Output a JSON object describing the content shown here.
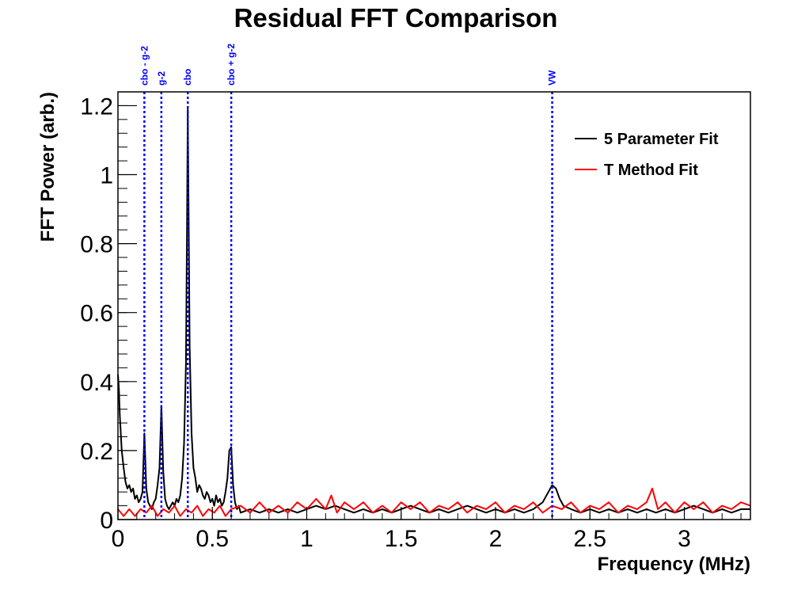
{
  "chart_data": {
    "type": "line",
    "title": "Residual FFT Comparison",
    "xlabel": "Frequency (MHz)",
    "ylabel": "FFT Power (arb.)",
    "xlim": [
      0,
      3.35
    ],
    "ylim": [
      0,
      1.24
    ],
    "x_ticks": [
      {
        "value": 0,
        "label": "0"
      },
      {
        "value": 0.5,
        "label": "0.5"
      },
      {
        "value": 1,
        "label": "1"
      },
      {
        "value": 1.5,
        "label": "1.5"
      },
      {
        "value": 2,
        "label": "2"
      },
      {
        "value": 2.5,
        "label": "2.5"
      },
      {
        "value": 3,
        "label": "3"
      }
    ],
    "y_ticks": [
      {
        "value": 0,
        "label": "0"
      },
      {
        "value": 0.2,
        "label": "0.2"
      },
      {
        "value": 0.4,
        "label": "0.4"
      },
      {
        "value": 0.6,
        "label": "0.6"
      },
      {
        "value": 0.8,
        "label": "0.8"
      },
      {
        "value": 1,
        "label": "1"
      },
      {
        "value": 1.2,
        "label": "1.2"
      }
    ],
    "legend_position": "top-right",
    "grid": false,
    "markers": [
      {
        "label": "cbo - g-2",
        "x": 0.14
      },
      {
        "label": "g-2",
        "x": 0.23
      },
      {
        "label": "cbo",
        "x": 0.37
      },
      {
        "label": "cbo + g-2",
        "x": 0.6
      },
      {
        "label": "VW",
        "x": 2.3
      }
    ],
    "series": [
      {
        "name": "5 Parameter Fit",
        "color": "#000000",
        "points": [
          [
            0,
            0.42
          ],
          [
            0.005,
            0.38
          ],
          [
            0.01,
            0.3
          ],
          [
            0.02,
            0.2
          ],
          [
            0.03,
            0.15
          ],
          [
            0.04,
            0.11
          ],
          [
            0.05,
            0.09
          ],
          [
            0.06,
            0.1
          ],
          [
            0.07,
            0.08
          ],
          [
            0.08,
            0.09
          ],
          [
            0.09,
            0.06
          ],
          [
            0.1,
            0.07
          ],
          [
            0.11,
            0.05
          ],
          [
            0.12,
            0.06
          ],
          [
            0.13,
            0.08
          ],
          [
            0.14,
            0.25
          ],
          [
            0.15,
            0.09
          ],
          [
            0.16,
            0.05
          ],
          [
            0.17,
            0.04
          ],
          [
            0.18,
            0.03
          ],
          [
            0.19,
            0.05
          ],
          [
            0.2,
            0.06
          ],
          [
            0.21,
            0.1
          ],
          [
            0.22,
            0.15
          ],
          [
            0.23,
            0.33
          ],
          [
            0.24,
            0.14
          ],
          [
            0.25,
            0.06
          ],
          [
            0.26,
            0.04
          ],
          [
            0.27,
            0.03
          ],
          [
            0.28,
            0.04
          ],
          [
            0.29,
            0.05
          ],
          [
            0.3,
            0.04
          ],
          [
            0.31,
            0.06
          ],
          [
            0.32,
            0.05
          ],
          [
            0.33,
            0.07
          ],
          [
            0.34,
            0.12
          ],
          [
            0.35,
            0.22
          ],
          [
            0.36,
            0.45
          ],
          [
            0.365,
            0.8
          ],
          [
            0.37,
            1.19
          ],
          [
            0.375,
            0.85
          ],
          [
            0.38,
            0.5
          ],
          [
            0.39,
            0.25
          ],
          [
            0.4,
            0.15
          ],
          [
            0.41,
            0.12
          ],
          [
            0.42,
            0.08
          ],
          [
            0.43,
            0.1
          ],
          [
            0.44,
            0.09
          ],
          [
            0.45,
            0.07
          ],
          [
            0.46,
            0.06
          ],
          [
            0.47,
            0.08
          ],
          [
            0.48,
            0.07
          ],
          [
            0.49,
            0.05
          ],
          [
            0.5,
            0.06
          ],
          [
            0.51,
            0.04
          ],
          [
            0.52,
            0.07
          ],
          [
            0.53,
            0.05
          ],
          [
            0.54,
            0.06
          ],
          [
            0.55,
            0.04
          ],
          [
            0.56,
            0.05
          ],
          [
            0.57,
            0.08
          ],
          [
            0.58,
            0.12
          ],
          [
            0.59,
            0.2
          ],
          [
            0.6,
            0.21
          ],
          [
            0.61,
            0.1
          ],
          [
            0.62,
            0.05
          ],
          [
            0.63,
            0.03
          ],
          [
            0.64,
            0.04
          ],
          [
            0.65,
            0.02
          ],
          [
            0.7,
            0.03
          ],
          [
            0.75,
            0.02
          ],
          [
            0.8,
            0.03
          ],
          [
            0.85,
            0.02
          ],
          [
            0.9,
            0.03
          ],
          [
            0.95,
            0.02
          ],
          [
            1,
            0.03
          ],
          [
            1.05,
            0.04
          ],
          [
            1.1,
            0.03
          ],
          [
            1.15,
            0.04
          ],
          [
            1.2,
            0.03
          ],
          [
            1.25,
            0.02
          ],
          [
            1.3,
            0.03
          ],
          [
            1.35,
            0.02
          ],
          [
            1.4,
            0.03
          ],
          [
            1.45,
            0.02
          ],
          [
            1.5,
            0.03
          ],
          [
            1.55,
            0.04
          ],
          [
            1.6,
            0.03
          ],
          [
            1.65,
            0.02
          ],
          [
            1.7,
            0.03
          ],
          [
            1.75,
            0.02
          ],
          [
            1.8,
            0.03
          ],
          [
            1.85,
            0.04
          ],
          [
            1.9,
            0.03
          ],
          [
            1.95,
            0.02
          ],
          [
            2,
            0.03
          ],
          [
            2.05,
            0.02
          ],
          [
            2.1,
            0.03
          ],
          [
            2.15,
            0.02
          ],
          [
            2.2,
            0.03
          ],
          [
            2.25,
            0.05
          ],
          [
            2.28,
            0.08
          ],
          [
            2.3,
            0.1
          ],
          [
            2.32,
            0.09
          ],
          [
            2.34,
            0.06
          ],
          [
            2.36,
            0.04
          ],
          [
            2.4,
            0.03
          ],
          [
            2.45,
            0.02
          ],
          [
            2.5,
            0.03
          ],
          [
            2.55,
            0.02
          ],
          [
            2.6,
            0.03
          ],
          [
            2.65,
            0.02
          ],
          [
            2.7,
            0.03
          ],
          [
            2.75,
            0.02
          ],
          [
            2.8,
            0.03
          ],
          [
            2.85,
            0.02
          ],
          [
            2.9,
            0.03
          ],
          [
            2.95,
            0.02
          ],
          [
            3,
            0.03
          ],
          [
            3.05,
            0.04
          ],
          [
            3.1,
            0.03
          ],
          [
            3.15,
            0.02
          ],
          [
            3.2,
            0.03
          ],
          [
            3.25,
            0.02
          ],
          [
            3.3,
            0.03
          ],
          [
            3.35,
            0.03
          ]
        ]
      },
      {
        "name": "T Method Fit",
        "color": "#ff0000",
        "points": [
          [
            0,
            0.03
          ],
          [
            0.03,
            0.01
          ],
          [
            0.06,
            0.03
          ],
          [
            0.09,
            0.01
          ],
          [
            0.12,
            0.03
          ],
          [
            0.15,
            0.02
          ],
          [
            0.18,
            0.04
          ],
          [
            0.21,
            0.01
          ],
          [
            0.24,
            0.03
          ],
          [
            0.27,
            0.02
          ],
          [
            0.3,
            0.04
          ],
          [
            0.33,
            0.01
          ],
          [
            0.36,
            0.03
          ],
          [
            0.39,
            0.02
          ],
          [
            0.42,
            0.04
          ],
          [
            0.45,
            0.01
          ],
          [
            0.48,
            0.03
          ],
          [
            0.51,
            0.02
          ],
          [
            0.54,
            0.04
          ],
          [
            0.57,
            0.01
          ],
          [
            0.6,
            0.03
          ],
          [
            0.65,
            0.04
          ],
          [
            0.7,
            0.02
          ],
          [
            0.75,
            0.05
          ],
          [
            0.8,
            0.02
          ],
          [
            0.85,
            0.04
          ],
          [
            0.9,
            0.02
          ],
          [
            0.95,
            0.05
          ],
          [
            1,
            0.03
          ],
          [
            1.05,
            0.06
          ],
          [
            1.1,
            0.03
          ],
          [
            1.13,
            0.07
          ],
          [
            1.16,
            0.02
          ],
          [
            1.2,
            0.05
          ],
          [
            1.25,
            0.03
          ],
          [
            1.3,
            0.05
          ],
          [
            1.35,
            0.02
          ],
          [
            1.4,
            0.04
          ],
          [
            1.45,
            0.02
          ],
          [
            1.5,
            0.05
          ],
          [
            1.55,
            0.03
          ],
          [
            1.6,
            0.05
          ],
          [
            1.65,
            0.02
          ],
          [
            1.7,
            0.04
          ],
          [
            1.75,
            0.03
          ],
          [
            1.8,
            0.05
          ],
          [
            1.85,
            0.02
          ],
          [
            1.9,
            0.04
          ],
          [
            1.95,
            0.03
          ],
          [
            2,
            0.05
          ],
          [
            2.05,
            0.02
          ],
          [
            2.1,
            0.04
          ],
          [
            2.15,
            0.03
          ],
          [
            2.2,
            0.05
          ],
          [
            2.25,
            0.02
          ],
          [
            2.3,
            0.04
          ],
          [
            2.35,
            0.03
          ],
          [
            2.4,
            0.05
          ],
          [
            2.45,
            0.02
          ],
          [
            2.5,
            0.04
          ],
          [
            2.55,
            0.03
          ],
          [
            2.6,
            0.05
          ],
          [
            2.65,
            0.02
          ],
          [
            2.7,
            0.04
          ],
          [
            2.75,
            0.03
          ],
          [
            2.8,
            0.05
          ],
          [
            2.83,
            0.09
          ],
          [
            2.86,
            0.03
          ],
          [
            2.9,
            0.05
          ],
          [
            2.95,
            0.02
          ],
          [
            3,
            0.05
          ],
          [
            3.05,
            0.03
          ],
          [
            3.1,
            0.05
          ],
          [
            3.15,
            0.02
          ],
          [
            3.2,
            0.04
          ],
          [
            3.25,
            0.03
          ],
          [
            3.3,
            0.05
          ],
          [
            3.35,
            0.04
          ]
        ]
      }
    ]
  }
}
